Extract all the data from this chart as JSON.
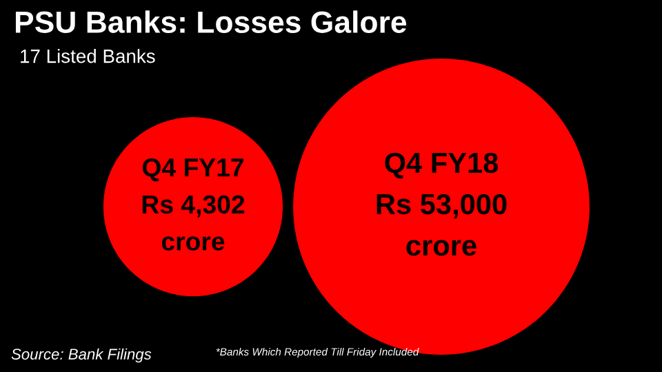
{
  "chart_data": {
    "type": "other",
    "title": "PSU Banks: Losses Galore",
    "subtitle": "17 Listed Banks",
    "categories": [
      "Q4 FY17",
      "Q4 FY18"
    ],
    "values": [
      4302,
      53000
    ],
    "value_labels": [
      "Rs 4,302 crore",
      "Rs 53,000 crore"
    ],
    "colors": [
      "#ff0000",
      "#ff0000"
    ],
    "annotations": [
      "Source: Bank Filings",
      "*Banks Which Reported Till Friday Included"
    ]
  }
}
